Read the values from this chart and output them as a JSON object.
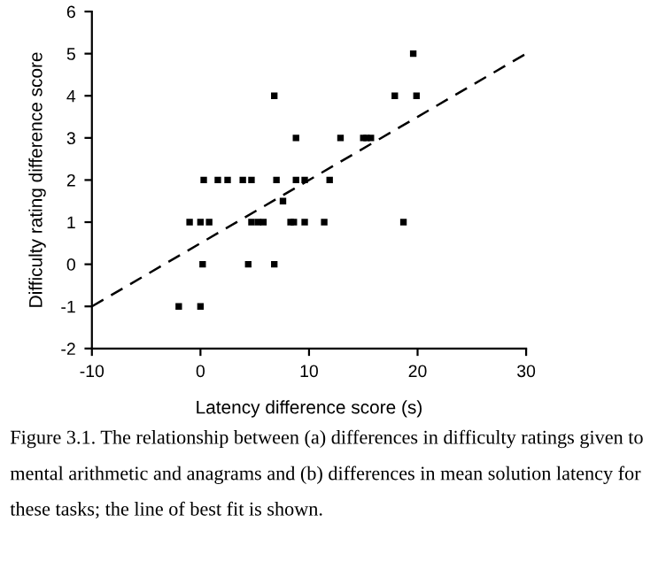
{
  "chart_data": {
    "type": "scatter",
    "xlabel": "Latency difference score (s)",
    "ylabel": "Difficulty rating difference score",
    "xlim": [
      -10,
      30
    ],
    "ylim": [
      -2,
      6
    ],
    "xticks": [
      -10,
      0,
      10,
      20,
      30
    ],
    "yticks": [
      -2,
      -1,
      0,
      1,
      2,
      3,
      4,
      5,
      6
    ],
    "grid": false,
    "marker": "square",
    "series": [
      {
        "color": "#000000",
        "x": [
          -2,
          0,
          -1,
          0,
          0.8,
          0.2,
          0.3,
          1.6,
          2.5,
          3.9,
          4.7,
          4.7,
          5.3,
          5.8,
          4.4,
          6.8,
          7.0,
          6.8,
          7.6,
          8.8,
          8.8,
          8.3,
          8.6,
          9.6,
          9.6,
          11.4,
          11.9,
          12.9,
          15.0,
          15.3,
          15.7,
          17.9,
          18.7,
          19.6,
          19.9
        ],
        "values": [
          -1,
          -1,
          1,
          1,
          1,
          0,
          2,
          2,
          2,
          2,
          2,
          1,
          1,
          1,
          0,
          4,
          2,
          0,
          1.5,
          3,
          2,
          1,
          1,
          2,
          1,
          1,
          2,
          3,
          3,
          3,
          3,
          4,
          1,
          5,
          4
        ]
      },
      {
        "type": "line",
        "line_style": "dashed",
        "marker": "none",
        "color": "#000000",
        "x": [
          -10,
          30
        ],
        "values": [
          -1,
          5
        ]
      }
    ],
    "annotations": [
      "Figure 3.1. The relationship between (a) differences in difficulty ratings given to mental arithmetic and anagrams and (b) differences in mean solution latency for these tasks; the line of best fit is shown."
    ]
  }
}
